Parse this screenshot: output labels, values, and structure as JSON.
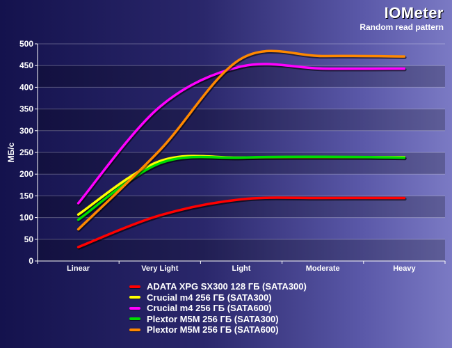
{
  "header": {
    "title": "IOMeter",
    "subtitle": "Random read pattern"
  },
  "chart_data": {
    "type": "line",
    "title": "IOMeter",
    "subtitle": "Random read pattern",
    "xlabel": "",
    "ylabel": "МБ/с",
    "categories": [
      "Linear",
      "Very Light",
      "Light",
      "Moderate",
      "Heavy"
    ],
    "ylim": [
      0,
      500
    ],
    "yticks": [
      0,
      50,
      100,
      150,
      200,
      250,
      300,
      350,
      400,
      450,
      500
    ],
    "grid": true,
    "legend_position": "bottom",
    "series": [
      {
        "name": "ADATA XPG SX300 128 ГБ (SATA300)",
        "color": "#ff0000",
        "values": [
          32,
          105,
          142,
          145,
          145
        ]
      },
      {
        "name": "Crucial m4 256 ГБ (SATA300)",
        "color": "#ffff00",
        "values": [
          107,
          230,
          238,
          239,
          239
        ]
      },
      {
        "name": "Crucial m4 256 ГБ (SATA600)",
        "color": "#ff00ff",
        "values": [
          133,
          355,
          448,
          443,
          443
        ]
      },
      {
        "name": "Plextor M5M 256 ГБ (SATA300)",
        "color": "#00dd00",
        "values": [
          95,
          225,
          238,
          240,
          238
        ]
      },
      {
        "name": "Plextor M5M 256 ГБ (SATA600)",
        "color": "#ff8800",
        "values": [
          73,
          255,
          466,
          472,
          471
        ]
      }
    ]
  }
}
